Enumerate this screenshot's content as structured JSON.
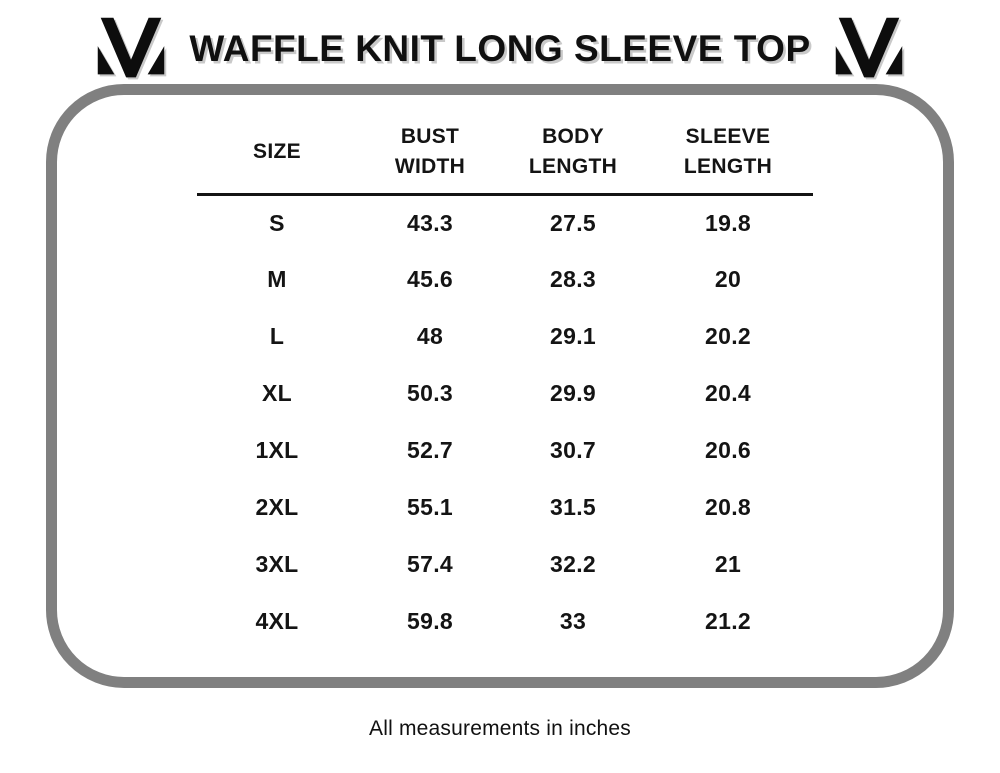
{
  "header": {
    "title": "WAFFLE KNIT LONG SLEEVE TOP",
    "logo": "brand-monogram-M"
  },
  "colors": {
    "frame_gray": "#808080",
    "text_black": "#141414",
    "title_shadow_gray": "#c9c9c9",
    "background": "#ffffff"
  },
  "footer": {
    "note": "All measurements in inches"
  },
  "chart_data": {
    "type": "table",
    "title": "WAFFLE KNIT LONG SLEEVE TOP",
    "units": "inches",
    "columns": [
      "SIZE",
      "BUST WIDTH",
      "BODY LENGTH",
      "SLEEVE LENGTH"
    ],
    "header_lines": [
      [
        "SIZE"
      ],
      [
        "BUST",
        "WIDTH"
      ],
      [
        "BODY",
        "LENGTH"
      ],
      [
        "SLEEVE",
        "LENGTH"
      ]
    ],
    "rows": [
      [
        "S",
        "43.3",
        "27.5",
        "19.8"
      ],
      [
        "M",
        "45.6",
        "28.3",
        "20"
      ],
      [
        "L",
        "48",
        "29.1",
        "20.2"
      ],
      [
        "XL",
        "50.3",
        "29.9",
        "20.4"
      ],
      [
        "1XL",
        "52.7",
        "30.7",
        "20.6"
      ],
      [
        "2XL",
        "55.1",
        "31.5",
        "20.8"
      ],
      [
        "3XL",
        "57.4",
        "32.2",
        "21"
      ],
      [
        "4XL",
        "59.8",
        "33",
        "21.2"
      ]
    ],
    "footnote": "All measurements in inches",
    "layout": {
      "grid": false,
      "header_rule": true,
      "frame": "rounded-gray-border"
    }
  }
}
